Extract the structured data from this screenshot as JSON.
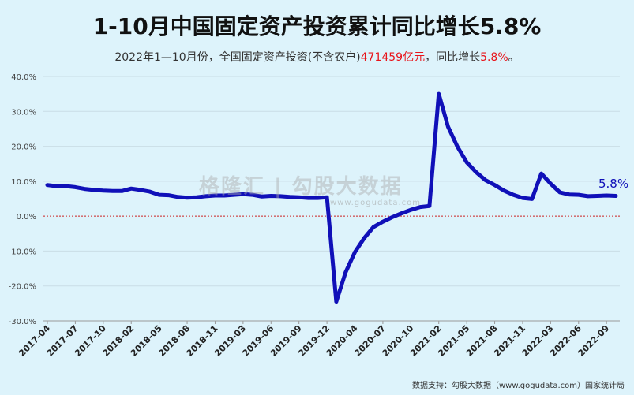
{
  "title": "1-10月中国固定资产投资累计同比增长5.8%",
  "subtitle": {
    "part1": "2022年1—10月份，全国固定资产投资(不含农户)",
    "value": "471459亿元",
    "part2": "，同比增长",
    "growth": "5.8%",
    "part3": "。"
  },
  "watermark": {
    "brand": "格隆汇 | 勾股大数据",
    "url": "www.gogudata.com"
  },
  "source": "数据支持：勾股大数据（www.gogudata.com）国家统计局",
  "colors": {
    "line": "#1010b8",
    "zero_line": "#cc2222",
    "background": "#ddf3fb",
    "accent_red": "#e8141a"
  },
  "chart_data": {
    "type": "line",
    "x": [
      "2017-04",
      "2017-05",
      "2017-06",
      "2017-07",
      "2017-08",
      "2017-09",
      "2017-10",
      "2017-11",
      "2017-12",
      "2018-02",
      "2018-03",
      "2018-04",
      "2018-05",
      "2018-06",
      "2018-07",
      "2018-08",
      "2018-09",
      "2018-10",
      "2018-11",
      "2018-12",
      "2019-02",
      "2019-03",
      "2019-04",
      "2019-05",
      "2019-06",
      "2019-07",
      "2019-08",
      "2019-09",
      "2019-10",
      "2019-11",
      "2019-12",
      "2020-02",
      "2020-03",
      "2020-04",
      "2020-05",
      "2020-06",
      "2020-07",
      "2020-08",
      "2020-09",
      "2020-10",
      "2020-11",
      "2020-12",
      "2021-02",
      "2021-03",
      "2021-04",
      "2021-05",
      "2021-06",
      "2021-07",
      "2021-08",
      "2021-09",
      "2021-10",
      "2021-11",
      "2021-12",
      "2022-02",
      "2022-03",
      "2022-04",
      "2022-05",
      "2022-06",
      "2022-07",
      "2022-08",
      "2022-09",
      "2022-10"
    ],
    "tick_labels": [
      "2017-04",
      "2017-07",
      "2017-10",
      "2018-02",
      "2018-05",
      "2018-08",
      "2018-11",
      "2019-03",
      "2019-06",
      "2019-09",
      "2019-12",
      "2020-04",
      "2020-07",
      "2020-10",
      "2021-02",
      "2021-05",
      "2021-08",
      "2021-11",
      "2022-03",
      "2022-06",
      "2022-09"
    ],
    "series": [
      {
        "values": [
          8.9,
          8.6,
          8.6,
          8.3,
          7.8,
          7.5,
          7.3,
          7.2,
          7.2,
          7.9,
          7.5,
          7.0,
          6.1,
          6.0,
          5.5,
          5.3,
          5.4,
          5.7,
          5.9,
          5.9,
          6.1,
          6.3,
          6.1,
          5.6,
          5.8,
          5.7,
          5.5,
          5.4,
          5.2,
          5.2,
          5.4,
          -24.5,
          -16.1,
          -10.3,
          -6.3,
          -3.1,
          -1.6,
          -0.3,
          0.8,
          1.8,
          2.6,
          2.9,
          35.0,
          25.6,
          19.9,
          15.4,
          12.6,
          10.3,
          8.9,
          7.3,
          6.1,
          5.2,
          4.9,
          12.2,
          9.3,
          6.8,
          6.2,
          6.1,
          5.7,
          5.8,
          5.9,
          5.8
        ]
      }
    ],
    "end_label": "5.8%",
    "yticks": [
      "40.0%",
      "30.0%",
      "20.0%",
      "10.0%",
      "0.0%",
      "-10.0%",
      "-20.0%",
      "-30.0%"
    ],
    "ylim": [
      -30,
      40
    ],
    "grid": true
  }
}
